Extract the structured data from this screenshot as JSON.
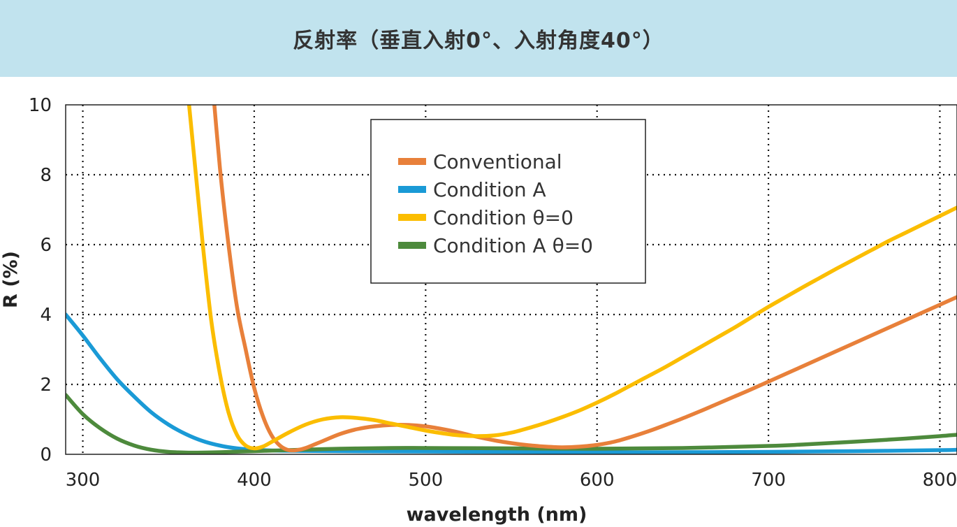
{
  "header": {
    "title": "反射率（垂直入射0°、入射角度40°）"
  },
  "chart_data": {
    "type": "line",
    "title": "反射率（垂直入射0°、入射角度40°）",
    "xlabel": "wavelength (nm)",
    "ylabel": "R (%)",
    "xlim": [
      290,
      810
    ],
    "ylim": [
      0,
      10
    ],
    "xticks": [
      300,
      400,
      500,
      600,
      700,
      800
    ],
    "yticks": [
      0,
      2,
      4,
      6,
      8,
      10
    ],
    "grid": true,
    "legend_position": "top-center",
    "series": [
      {
        "name": "Conventional",
        "color": "#e8803a",
        "points": [
          [
            375,
            11
          ],
          [
            380,
            8.2
          ],
          [
            385,
            6.0
          ],
          [
            390,
            4.2
          ],
          [
            395,
            3.0
          ],
          [
            400,
            1.9
          ],
          [
            405,
            1.1
          ],
          [
            410,
            0.55
          ],
          [
            415,
            0.25
          ],
          [
            420,
            0.12
          ],
          [
            425,
            0.12
          ],
          [
            430,
            0.18
          ],
          [
            440,
            0.38
          ],
          [
            450,
            0.58
          ],
          [
            460,
            0.72
          ],
          [
            470,
            0.8
          ],
          [
            480,
            0.84
          ],
          [
            490,
            0.84
          ],
          [
            500,
            0.8
          ],
          [
            510,
            0.72
          ],
          [
            520,
            0.62
          ],
          [
            530,
            0.5
          ],
          [
            540,
            0.4
          ],
          [
            550,
            0.32
          ],
          [
            560,
            0.26
          ],
          [
            570,
            0.22
          ],
          [
            580,
            0.2
          ],
          [
            590,
            0.22
          ],
          [
            600,
            0.27
          ],
          [
            610,
            0.36
          ],
          [
            620,
            0.5
          ],
          [
            630,
            0.66
          ],
          [
            640,
            0.84
          ],
          [
            650,
            1.03
          ],
          [
            660,
            1.23
          ],
          [
            670,
            1.44
          ],
          [
            680,
            1.65
          ],
          [
            690,
            1.86
          ],
          [
            700,
            2.08
          ],
          [
            710,
            2.3
          ],
          [
            720,
            2.52
          ],
          [
            730,
            2.74
          ],
          [
            740,
            2.96
          ],
          [
            750,
            3.18
          ],
          [
            760,
            3.4
          ],
          [
            770,
            3.62
          ],
          [
            780,
            3.84
          ],
          [
            790,
            4.06
          ],
          [
            800,
            4.28
          ],
          [
            810,
            4.5
          ]
        ]
      },
      {
        "name": "Condition A",
        "color": "#1a9ad6",
        "points": [
          [
            290,
            4.0
          ],
          [
            300,
            3.4
          ],
          [
            310,
            2.75
          ],
          [
            320,
            2.15
          ],
          [
            330,
            1.65
          ],
          [
            340,
            1.2
          ],
          [
            350,
            0.85
          ],
          [
            360,
            0.58
          ],
          [
            370,
            0.38
          ],
          [
            380,
            0.25
          ],
          [
            390,
            0.17
          ],
          [
            400,
            0.13
          ],
          [
            420,
            0.1
          ],
          [
            450,
            0.09
          ],
          [
            500,
            0.08
          ],
          [
            550,
            0.07
          ],
          [
            600,
            0.06
          ],
          [
            650,
            0.06
          ],
          [
            700,
            0.07
          ],
          [
            750,
            0.09
          ],
          [
            800,
            0.12
          ],
          [
            810,
            0.13
          ]
        ]
      },
      {
        "name": "Condition θ=0",
        "color": "#fbbd00",
        "points": [
          [
            360,
            11
          ],
          [
            365,
            8.5
          ],
          [
            370,
            6.0
          ],
          [
            375,
            3.8
          ],
          [
            380,
            2.3
          ],
          [
            385,
            1.2
          ],
          [
            390,
            0.55
          ],
          [
            395,
            0.25
          ],
          [
            400,
            0.17
          ],
          [
            405,
            0.22
          ],
          [
            410,
            0.35
          ],
          [
            420,
            0.62
          ],
          [
            430,
            0.85
          ],
          [
            440,
            1.0
          ],
          [
            450,
            1.06
          ],
          [
            460,
            1.04
          ],
          [
            470,
            0.98
          ],
          [
            480,
            0.88
          ],
          [
            490,
            0.78
          ],
          [
            500,
            0.68
          ],
          [
            510,
            0.6
          ],
          [
            520,
            0.54
          ],
          [
            530,
            0.52
          ],
          [
            540,
            0.54
          ],
          [
            550,
            0.62
          ],
          [
            560,
            0.75
          ],
          [
            570,
            0.9
          ],
          [
            580,
            1.07
          ],
          [
            590,
            1.26
          ],
          [
            600,
            1.48
          ],
          [
            610,
            1.72
          ],
          [
            620,
            1.98
          ],
          [
            630,
            2.24
          ],
          [
            640,
            2.5
          ],
          [
            650,
            2.78
          ],
          [
            660,
            3.06
          ],
          [
            670,
            3.34
          ],
          [
            680,
            3.62
          ],
          [
            690,
            3.92
          ],
          [
            700,
            4.22
          ],
          [
            710,
            4.5
          ],
          [
            720,
            4.78
          ],
          [
            730,
            5.05
          ],
          [
            740,
            5.32
          ],
          [
            750,
            5.58
          ],
          [
            760,
            5.84
          ],
          [
            770,
            6.1
          ],
          [
            780,
            6.34
          ],
          [
            790,
            6.58
          ],
          [
            800,
            6.82
          ],
          [
            810,
            7.06
          ]
        ]
      },
      {
        "name": "Condition A θ=0",
        "color": "#4d8a3c",
        "points": [
          [
            290,
            1.7
          ],
          [
            300,
            1.15
          ],
          [
            310,
            0.75
          ],
          [
            320,
            0.45
          ],
          [
            330,
            0.25
          ],
          [
            340,
            0.13
          ],
          [
            350,
            0.07
          ],
          [
            360,
            0.05
          ],
          [
            370,
            0.05
          ],
          [
            380,
            0.06
          ],
          [
            400,
            0.09
          ],
          [
            420,
            0.12
          ],
          [
            450,
            0.16
          ],
          [
            480,
            0.18
          ],
          [
            500,
            0.18
          ],
          [
            550,
            0.17
          ],
          [
            600,
            0.16
          ],
          [
            650,
            0.18
          ],
          [
            700,
            0.24
          ],
          [
            720,
            0.28
          ],
          [
            750,
            0.36
          ],
          [
            780,
            0.45
          ],
          [
            800,
            0.52
          ],
          [
            810,
            0.56
          ]
        ]
      }
    ]
  }
}
